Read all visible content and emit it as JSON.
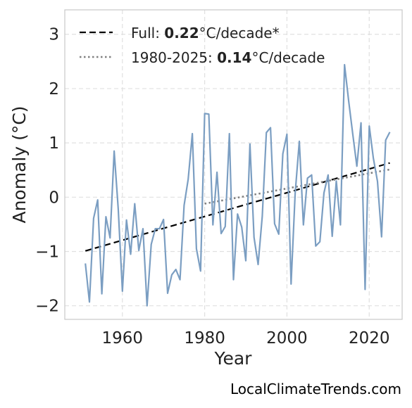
{
  "chart_data": {
    "type": "line",
    "x": [
      1951,
      1952,
      1953,
      1954,
      1955,
      1956,
      1957,
      1958,
      1959,
      1960,
      1961,
      1962,
      1963,
      1964,
      1965,
      1966,
      1967,
      1968,
      1969,
      1970,
      1971,
      1972,
      1973,
      1974,
      1975,
      1976,
      1977,
      1978,
      1979,
      1980,
      1981,
      1982,
      1983,
      1984,
      1985,
      1986,
      1987,
      1988,
      1989,
      1990,
      1991,
      1992,
      1993,
      1994,
      1995,
      1996,
      1997,
      1998,
      1999,
      2000,
      2001,
      2002,
      2003,
      2004,
      2005,
      2006,
      2007,
      2008,
      2009,
      2010,
      2011,
      2012,
      2013,
      2014,
      2015,
      2016,
      2017,
      2018,
      2019,
      2020,
      2021,
      2022,
      2023,
      2024,
      2025
    ],
    "series": [
      {
        "values": [
          -1.22,
          -1.93,
          -0.39,
          -0.05,
          -1.78,
          -0.36,
          -0.75,
          0.85,
          -0.22,
          -1.73,
          -0.42,
          -1.05,
          -0.12,
          -0.98,
          -0.58,
          -2.0,
          -0.87,
          -0.58,
          -0.58,
          -0.41,
          -1.77,
          -1.43,
          -1.33,
          -1.52,
          -0.15,
          0.33,
          1.17,
          -0.95,
          -1.36,
          1.54,
          1.53,
          -0.51,
          0.46,
          -0.67,
          -0.54,
          1.17,
          -1.52,
          -0.31,
          -0.55,
          -1.17,
          0.98,
          -0.74,
          -1.24,
          -0.35,
          1.19,
          1.28,
          -0.49,
          -0.68,
          0.8,
          1.16,
          -1.6,
          0.07,
          1.03,
          -0.51,
          0.35,
          0.41,
          -0.9,
          -0.82,
          0.08,
          0.41,
          -0.72,
          0.3,
          -0.51,
          2.44,
          1.77,
          1.16,
          0.57,
          1.37,
          -1.7,
          1.31,
          0.72,
          0.29,
          -0.73,
          1.05,
          1.2
        ],
        "color": "#7b9ec2"
      }
    ],
    "trend_full": {
      "x": [
        1951,
        2025
      ],
      "y": [
        -0.99,
        0.63
      ],
      "color": "#000000",
      "style": "dashed"
    },
    "trend_recent": {
      "x": [
        1980,
        2025
      ],
      "y": [
        -0.12,
        0.51
      ],
      "color": "#808080",
      "style": "dotted"
    },
    "xlabel": "Year",
    "ylabel": "Anomaly (°C)",
    "xlim": [
      1946,
      2028
    ],
    "ylim": [
      -2.25,
      3.45
    ],
    "xticks": [
      1960,
      1980,
      2000,
      2020
    ],
    "yticks": [
      -2,
      -1,
      0,
      1,
      2,
      3
    ],
    "ytick_labels": [
      "−2",
      "−1",
      "0",
      "1",
      "2",
      "3"
    ],
    "grid": true,
    "legend_position": "top-left",
    "legend": [
      {
        "prefix": "Full: ",
        "value": "0.22",
        "suffix": "°C/decade*"
      },
      {
        "prefix": "1980-2025: ",
        "value": "0.14",
        "suffix": "°C/decade"
      }
    ]
  },
  "watermark": "LocalClimateTrends.com"
}
